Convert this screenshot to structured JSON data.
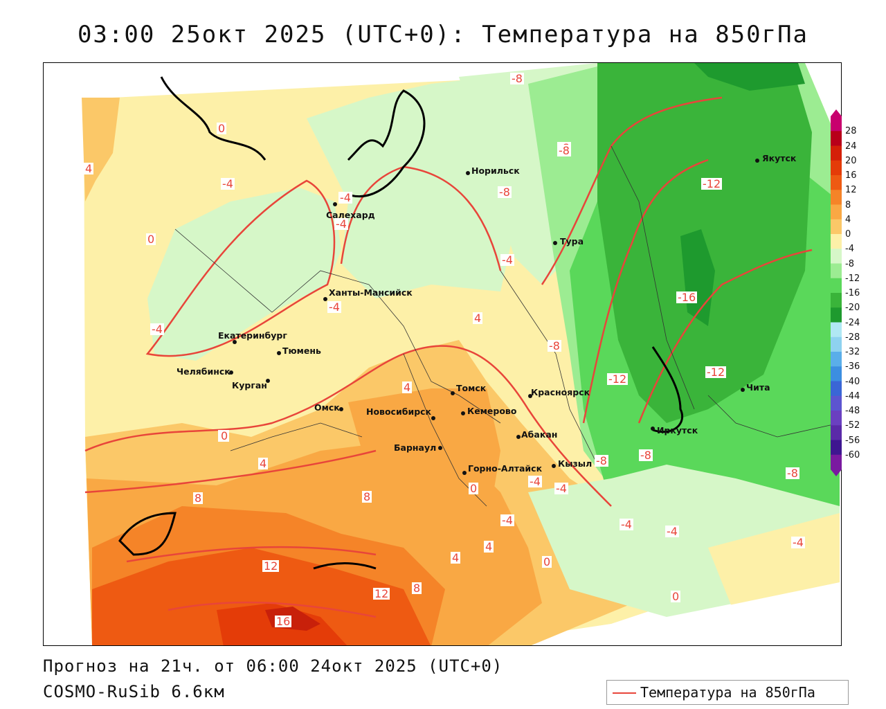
{
  "title": "03:00 25окт 2025 (UTC+0): Температура на 850гПа",
  "footer": {
    "forecast": "Прогноз на 21ч. от 06:00 24окт 2025 (UTC+0)",
    "model": "COSMO-RuSib 6.6км"
  },
  "legend": {
    "label": "Температура на 850гПа",
    "line_color": "#e8453a"
  },
  "colorbar": {
    "labels": [
      "28",
      "24",
      "20",
      "16",
      "12",
      "8",
      "4",
      "0",
      "-4",
      "-8",
      "-12",
      "-16",
      "-20",
      "-24",
      "-28",
      "-32",
      "-36",
      "-40",
      "-44",
      "-48",
      "-52",
      "-56",
      "-60"
    ],
    "colors": [
      "#c8006e",
      "#b8001a",
      "#d42008",
      "#e43c08",
      "#ee5a12",
      "#f58428",
      "#f9a844",
      "#fbc868",
      "#fdf0a8",
      "#d6f7c8",
      "#9cec92",
      "#5ad85a",
      "#3ab43a",
      "#1e9a2e",
      "#b0e8f4",
      "#8ed2f0",
      "#5aaeea",
      "#3c8ee0",
      "#3a66d6",
      "#5c55d0",
      "#6a40c0",
      "#5a2aa8",
      "#3e1690",
      "#7a1aa0"
    ]
  },
  "cities": [
    {
      "name": "Норильск"
    },
    {
      "name": "Якутск"
    },
    {
      "name": "Салехард"
    },
    {
      "name": "Тура"
    },
    {
      "name": "Ханты-Мансийск"
    },
    {
      "name": "Екатеринбург"
    },
    {
      "name": "Тюмень"
    },
    {
      "name": "Челябинск"
    },
    {
      "name": "Курган"
    },
    {
      "name": "Омск"
    },
    {
      "name": "Томск"
    },
    {
      "name": "Красноярск"
    },
    {
      "name": "Новосибирск"
    },
    {
      "name": "Кемерово"
    },
    {
      "name": "Чита"
    },
    {
      "name": "Абакан"
    },
    {
      "name": "Иркутск"
    },
    {
      "name": "Барнаул"
    },
    {
      "name": "Кызыл"
    },
    {
      "name": "Горно-Алтайск"
    }
  ],
  "isotherm_labels": [
    "-8",
    "0",
    "-4",
    "4",
    "-8",
    "-12",
    "-4",
    "-4",
    "-8",
    "0",
    "-4",
    "-4",
    "4",
    "-8",
    "-16",
    "-4",
    "0",
    "-8",
    "-12",
    "-12",
    "4",
    "0",
    "-8",
    "-8",
    "-4",
    "-8",
    "4",
    "8",
    "0",
    "-4",
    "8",
    "-4",
    "-4",
    "-4",
    "4",
    "4",
    "12",
    "4",
    "-4",
    "0",
    "12",
    "8",
    "0",
    "16"
  ]
}
